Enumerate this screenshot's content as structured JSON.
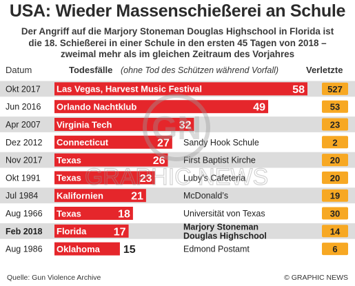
{
  "title": "USA: Wieder Massenschießerei an Schule",
  "subtitle_lines": [
    "Der Angriff auf die Marjory Stoneman Douglas Highschool in Florida ist",
    "die 18. Schießerei in einer Schule in den ersten 45 Tagen von 2018 –",
    "zweimal mehr als im gleichen Zeitraum des Vorjahres"
  ],
  "headers": {
    "date": "Datum",
    "deaths": "Todesfälle",
    "deaths_note": "(ohne Tod des Schützen während Vorfall)",
    "injured": "Verletzte"
  },
  "chart_data": {
    "type": "bar",
    "orientation": "horizontal",
    "xlim": [
      0,
      58
    ],
    "grid": false,
    "rows": [
      {
        "date": "Okt 2017",
        "location": "Las Vegas, Harvest Music Festival",
        "deaths": 58,
        "detail": "",
        "injured": 527,
        "highlight": false
      },
      {
        "date": "Jun 2016",
        "location": "Orlando Nachtklub",
        "deaths": 49,
        "detail": "",
        "injured": 53,
        "highlight": false
      },
      {
        "date": "Apr 2007",
        "location": "Virginia Tech",
        "deaths": 32,
        "detail": "",
        "injured": 23,
        "highlight": false
      },
      {
        "date": "Dez 2012",
        "location": "Connecticut",
        "deaths": 27,
        "detail": "Sandy Hook Schule",
        "injured": 2,
        "highlight": false
      },
      {
        "date": "Nov 2017",
        "location": "Texas",
        "deaths": 26,
        "detail": "First Baptist Kirche",
        "injured": 20,
        "highlight": false
      },
      {
        "date": "Okt 1991",
        "location": "Texas",
        "deaths": 23,
        "detail": "Luby’s Cafeteria",
        "injured": 20,
        "highlight": false
      },
      {
        "date": "Jul 1984",
        "location": "Kalifornien",
        "deaths": 21,
        "detail": "McDonald’s",
        "injured": 19,
        "highlight": false
      },
      {
        "date": "Aug 1966",
        "location": "Texas",
        "deaths": 18,
        "detail": "Universität von Texas",
        "injured": 30,
        "highlight": false
      },
      {
        "date": "Feb 2018",
        "location": "Florida",
        "deaths": 17,
        "detail": "Marjory Stoneman Douglas Highschool",
        "injured": 14,
        "highlight": true
      },
      {
        "date": "Aug 1986",
        "location": "Oklahoma",
        "deaths": 15,
        "detail": "Edmond Postamt",
        "injured": 6,
        "highlight": false
      }
    ]
  },
  "source": "Quelle: Gun Violence Archive",
  "credit": "© GRAPHIC NEWS",
  "watermark": {
    "logo": "GN",
    "text": "GRAPHIC NEWS"
  },
  "colors": {
    "bar": "#e5262b",
    "row_band": "#dcdcdc",
    "injured_box": "#f7a823",
    "text_dark": "#222222",
    "watermark": "#9a9a9a"
  }
}
